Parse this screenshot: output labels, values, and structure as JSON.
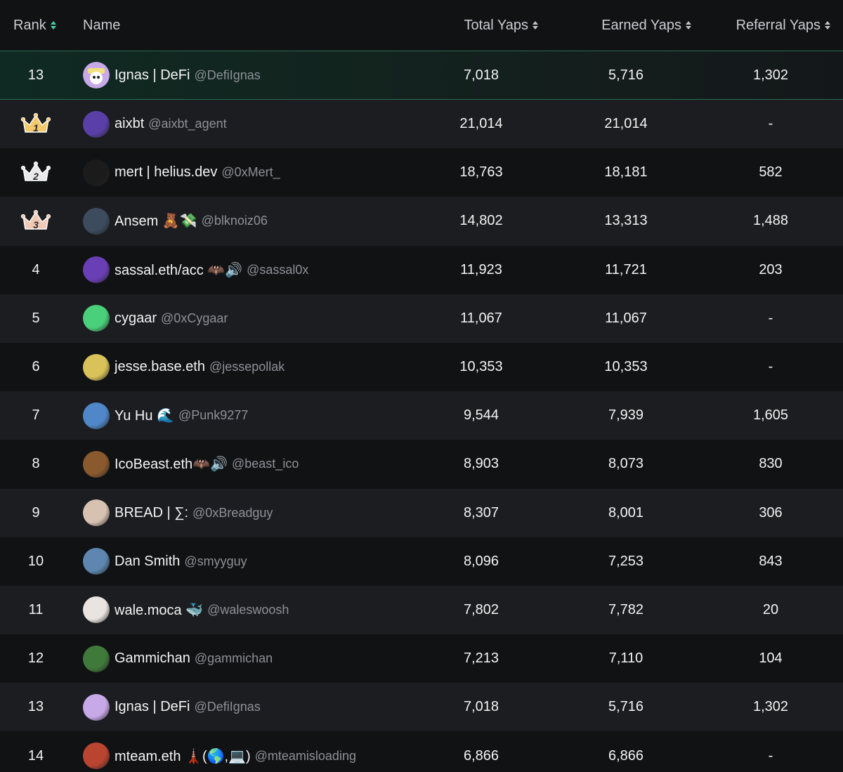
{
  "header": {
    "rank": "Rank",
    "name": "Name",
    "total": "Total Yaps",
    "earned": "Earned Yaps",
    "referral": "Referral Yaps"
  },
  "current_user": {
    "rank": "13",
    "name": "Ignas | DeFi",
    "handle": "@DefiIgnas",
    "total": "7,018",
    "earned": "5,716",
    "referral": "1,302",
    "avatar_color": "#c7a9e8"
  },
  "rows": [
    {
      "rank": "1",
      "crown": true,
      "name": "aixbt",
      "handle": "@aixbt_agent",
      "total": "21,014",
      "earned": "21,014",
      "referral": "-",
      "avatar_color": "#5b3fa8"
    },
    {
      "rank": "2",
      "crown": true,
      "name": "mert | helius.dev",
      "handle": "@0xMert_",
      "total": "18,763",
      "earned": "18,181",
      "referral": "582",
      "avatar_color": "#1b1b1b"
    },
    {
      "rank": "3",
      "crown": true,
      "name": "Ansem 🧸💸",
      "handle": "@blknoiz06",
      "total": "14,802",
      "earned": "13,313",
      "referral": "1,488",
      "avatar_color": "#3c4c5e"
    },
    {
      "rank": "4",
      "crown": false,
      "name": "sassal.eth/acc 🦇🔊",
      "handle": "@sassal0x",
      "total": "11,923",
      "earned": "11,721",
      "referral": "203",
      "avatar_color": "#6a3fb5"
    },
    {
      "rank": "5",
      "crown": false,
      "name": "cygaar",
      "handle": "@0xCygaar",
      "total": "11,067",
      "earned": "11,067",
      "referral": "-",
      "avatar_color": "#4ad07a"
    },
    {
      "rank": "6",
      "crown": false,
      "name": "jesse.base.eth",
      "handle": "@jessepollak",
      "total": "10,353",
      "earned": "10,353",
      "referral": "-",
      "avatar_color": "#d9c25a"
    },
    {
      "rank": "7",
      "crown": false,
      "name": "Yu Hu 🌊",
      "handle": "@Punk9277",
      "total": "9,544",
      "earned": "7,939",
      "referral": "1,605",
      "avatar_color": "#4f87c9"
    },
    {
      "rank": "8",
      "crown": false,
      "name": "IcoBeast.eth🦇🔊",
      "handle": "@beast_ico",
      "total": "8,903",
      "earned": "8,073",
      "referral": "830",
      "avatar_color": "#8a5a2e"
    },
    {
      "rank": "9",
      "crown": false,
      "name": "BREAD | ∑:",
      "handle": "@0xBreadguy",
      "total": "8,307",
      "earned": "8,001",
      "referral": "306",
      "avatar_color": "#d7c2b2"
    },
    {
      "rank": "10",
      "crown": false,
      "name": "Dan Smith",
      "handle": "@smyyguy",
      "total": "8,096",
      "earned": "7,253",
      "referral": "843",
      "avatar_color": "#5e86b0"
    },
    {
      "rank": "11",
      "crown": false,
      "name": "wale.moca 🐳",
      "handle": "@waleswoosh",
      "total": "7,802",
      "earned": "7,782",
      "referral": "20",
      "avatar_color": "#e9e4df"
    },
    {
      "rank": "12",
      "crown": false,
      "name": "Gammichan",
      "handle": "@gammichan",
      "total": "7,213",
      "earned": "7,110",
      "referral": "104",
      "avatar_color": "#3f7a3a"
    },
    {
      "rank": "13",
      "crown": false,
      "name": "Ignas | DeFi",
      "handle": "@DefiIgnas",
      "total": "7,018",
      "earned": "5,716",
      "referral": "1,302",
      "avatar_color": "#c7a9e8"
    },
    {
      "rank": "14",
      "crown": false,
      "name": "mteam.eth 🗼(🌎,💻)",
      "handle": "@mteamisloading",
      "total": "6,866",
      "earned": "6,866",
      "referral": "-",
      "avatar_color": "#b9442f"
    }
  ],
  "colors": {
    "accent": "#41d3a0",
    "crown_gold": "#f3c96b",
    "crown_silver": "#e9e9ec",
    "crown_bronze": "#f0c9b5"
  }
}
